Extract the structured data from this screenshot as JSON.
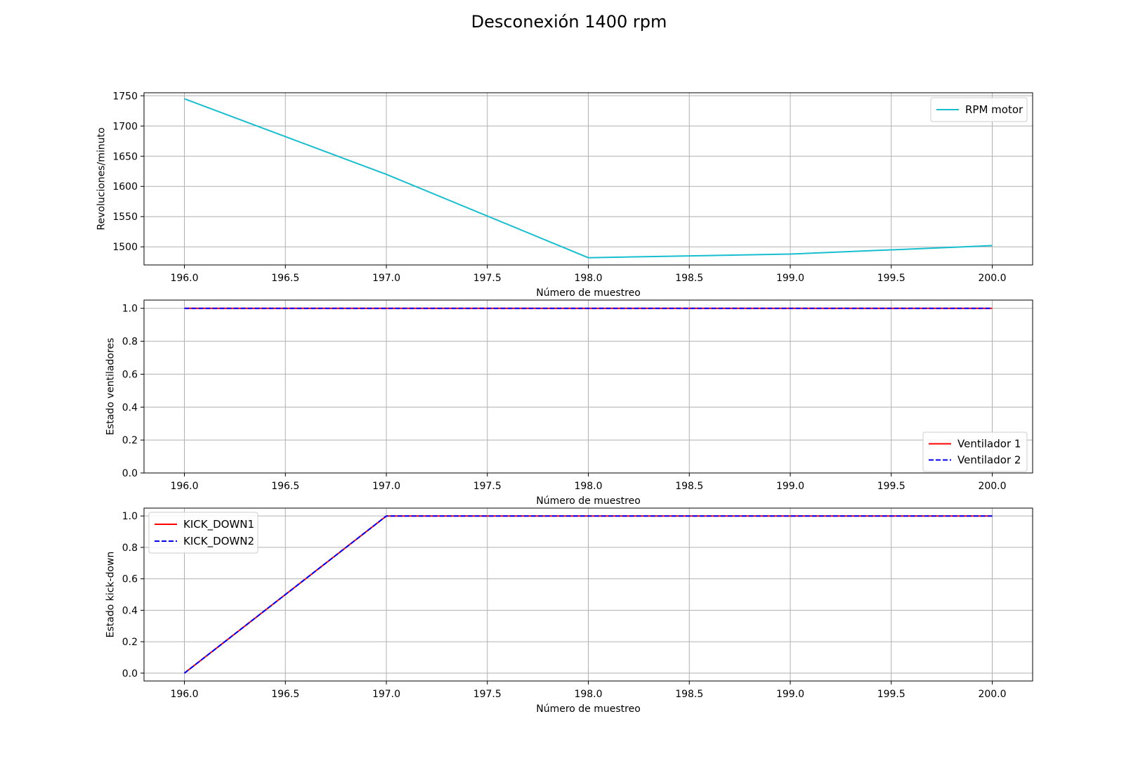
{
  "figure": {
    "title": "Desconexión 1400 rpm"
  },
  "chart_data": [
    {
      "type": "line",
      "xlabel": "Número de muestreo",
      "ylabel": "Revoluciones/minuto",
      "xlim": [
        195.8,
        200.2
      ],
      "ylim": [
        1470,
        1755
      ],
      "xticks": [
        196.0,
        196.5,
        197.0,
        197.5,
        198.0,
        198.5,
        199.0,
        199.5,
        200.0
      ],
      "xtick_labels": [
        "196.0",
        "196.5",
        "197.0",
        "197.5",
        "198.0",
        "198.5",
        "199.0",
        "199.5",
        "200.0"
      ],
      "yticks": [
        1500,
        1550,
        1600,
        1650,
        1700,
        1750
      ],
      "ytick_labels": [
        "1500",
        "1550",
        "1600",
        "1650",
        "1700",
        "1750"
      ],
      "grid": true,
      "legend_position": "top-right",
      "x": [
        196,
        197,
        198,
        199,
        200
      ],
      "series": [
        {
          "name": "RPM motor",
          "color": "#17becf",
          "dash": "solid",
          "values": [
            1745,
            1620,
            1482,
            1488,
            1502
          ]
        }
      ]
    },
    {
      "type": "line",
      "xlabel": "Número de muestreo",
      "ylabel": "Estado ventiladores",
      "xlim": [
        195.8,
        200.2
      ],
      "ylim": [
        0.0,
        1.05
      ],
      "xticks": [
        196.0,
        196.5,
        197.0,
        197.5,
        198.0,
        198.5,
        199.0,
        199.5,
        200.0
      ],
      "xtick_labels": [
        "196.0",
        "196.5",
        "197.0",
        "197.5",
        "198.0",
        "198.5",
        "199.0",
        "199.5",
        "200.0"
      ],
      "yticks": [
        0.0,
        0.2,
        0.4,
        0.6,
        0.8,
        1.0
      ],
      "ytick_labels": [
        "0.0",
        "0.2",
        "0.4",
        "0.6",
        "0.8",
        "1.0"
      ],
      "grid": true,
      "legend_position": "bottom-right",
      "x": [
        196,
        197,
        198,
        199,
        200
      ],
      "series": [
        {
          "name": "Ventilador 1",
          "color": "#ff0000",
          "dash": "solid",
          "values": [
            1,
            1,
            1,
            1,
            1
          ]
        },
        {
          "name": "Ventilador 2",
          "color": "#0000ff",
          "dash": "dashed",
          "values": [
            1,
            1,
            1,
            1,
            1
          ]
        }
      ]
    },
    {
      "type": "line",
      "xlabel": "Número de muestreo",
      "ylabel": "Estado kick-down",
      "xlim": [
        195.8,
        200.2
      ],
      "ylim": [
        -0.05,
        1.05
      ],
      "xticks": [
        196.0,
        196.5,
        197.0,
        197.5,
        198.0,
        198.5,
        199.0,
        199.5,
        200.0
      ],
      "xtick_labels": [
        "196.0",
        "196.5",
        "197.0",
        "197.5",
        "198.0",
        "198.5",
        "199.0",
        "199.5",
        "200.0"
      ],
      "yticks": [
        0.0,
        0.2,
        0.4,
        0.6,
        0.8,
        1.0
      ],
      "ytick_labels": [
        "0.0",
        "0.2",
        "0.4",
        "0.6",
        "0.8",
        "1.0"
      ],
      "grid": true,
      "legend_position": "top-left",
      "x": [
        196,
        197,
        198,
        199,
        200
      ],
      "series": [
        {
          "name": "KICK_DOWN1",
          "color": "#ff0000",
          "dash": "solid",
          "values": [
            0,
            1,
            1,
            1,
            1
          ]
        },
        {
          "name": "KICK_DOWN2",
          "color": "#0000ff",
          "dash": "dashed",
          "values": [
            0,
            1,
            1,
            1,
            1
          ]
        }
      ]
    }
  ]
}
